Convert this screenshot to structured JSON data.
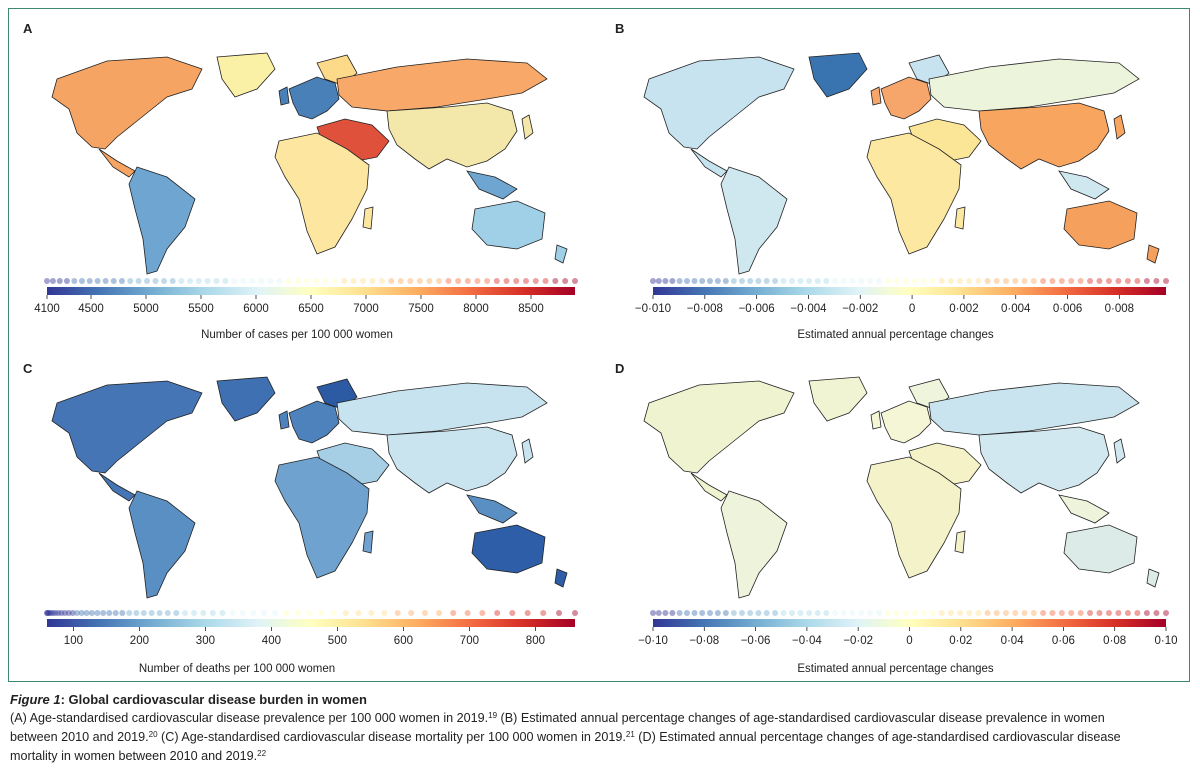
{
  "panels": [
    {
      "letter": "A",
      "axis_title": "Number of cases per 100 000 women",
      "ticks": [
        "4100",
        "4500",
        "5000",
        "5500",
        "6000",
        "6500",
        "7000",
        "7500",
        "8000",
        "8500"
      ],
      "tick_values": [
        4100,
        4500,
        5000,
        5500,
        6000,
        6500,
        7000,
        7500,
        8000,
        8500
      ],
      "range": [
        4100,
        8900
      ],
      "colors": {
        "americas": "#f6a463",
        "eu": "#4a80b8",
        "north": "#fdd98a",
        "russia": "#f8a868",
        "me": "#e0513c",
        "africa": "#fde6a0",
        "sa": "#6ea6d1",
        "oz": "#9fd0e8",
        "greenland": "#fbf1a6",
        "asia": "#f3e7a9"
      }
    },
    {
      "letter": "B",
      "axis_title": "Estimated annual percentage changes",
      "ticks": [
        "−0·010",
        "−0·008",
        "−0·006",
        "−0·004",
        "−0·002",
        "0",
        "0·002",
        "0·004",
        "0·006",
        "0·008"
      ],
      "tick_values": [
        -0.01,
        -0.008,
        -0.006,
        -0.004,
        -0.002,
        0,
        0.002,
        0.004,
        0.006,
        0.008
      ],
      "range": [
        -0.01,
        0.0098
      ],
      "colors": {
        "americas": "#c7e3ef",
        "eu": "#f6a66a",
        "north": "#c7e3ef",
        "russia": "#ecf4db",
        "me": "#fbe597",
        "africa": "#fde8a2",
        "sa": "#cfe8f0",
        "oz": "#f6a05d",
        "greenland": "#3a74b0",
        "asia": "#f8a560"
      }
    },
    {
      "letter": "C",
      "axis_title": "Number of deaths per 100 000 women",
      "ticks": [
        "100",
        "200",
        "300",
        "400",
        "500",
        "600",
        "700",
        "800"
      ],
      "tick_values": [
        100,
        200,
        300,
        400,
        500,
        600,
        700,
        800
      ],
      "range": [
        60,
        860
      ],
      "colors": {
        "americas": "#4575b4",
        "eu": "#4e82bd",
        "north": "#2c5aa3",
        "russia": "#c7e3ef",
        "me": "#a6cfe5",
        "africa": "#6fa2cf",
        "sa": "#5a8fc4",
        "oz": "#2e5ea8",
        "greenland": "#3f70b2",
        "asia": "#c9e4ef"
      }
    },
    {
      "letter": "D",
      "axis_title": "Estimated annual percentage changes",
      "ticks": [
        "−0·10",
        "−0·08",
        "−0·06",
        "−0·04",
        "−0·02",
        "0",
        "0·02",
        "0·04",
        "0·06",
        "0·08",
        "0·10"
      ],
      "tick_values": [
        -0.1,
        -0.08,
        -0.06,
        -0.04,
        -0.02,
        0,
        0.02,
        0.04,
        0.06,
        0.08,
        0.1
      ],
      "range": [
        -0.1,
        0.1
      ],
      "colors": {
        "americas": "#f0f3cf",
        "eu": "#f4f6d6",
        "north": "#eef5dc",
        "russia": "#c9e3ef",
        "me": "#f4f2c6",
        "africa": "#f4f2c9",
        "sa": "#eef4dc",
        "oz": "#dcebe8",
        "greenland": "#f1f4d2",
        "asia": "#d2e8f0"
      }
    }
  ],
  "caption": {
    "label": "Figure 1",
    "title": "Global cardiovascular disease burden in women",
    "line1_a": "(A) Age-standardised cardiovascular disease prevalence per 100 000 women in 2019.",
    "ref19": "19",
    "line1_b": " (B) Estimated annual percentage changes of age-standardised cardiovascular disease prevalence in women",
    "line2_a": "between 2010 and 2019.",
    "ref20": "20",
    "line2_b": " (C) Age-standardised cardiovascular disease mortality per 100 000 women in 2019.",
    "ref21": "21",
    "line2_c": " (D) Estimated annual percentage changes of age-standardised cardiovascular disease",
    "line3_a": "mortality in women between 2010 and 2019.",
    "ref22": "22"
  }
}
